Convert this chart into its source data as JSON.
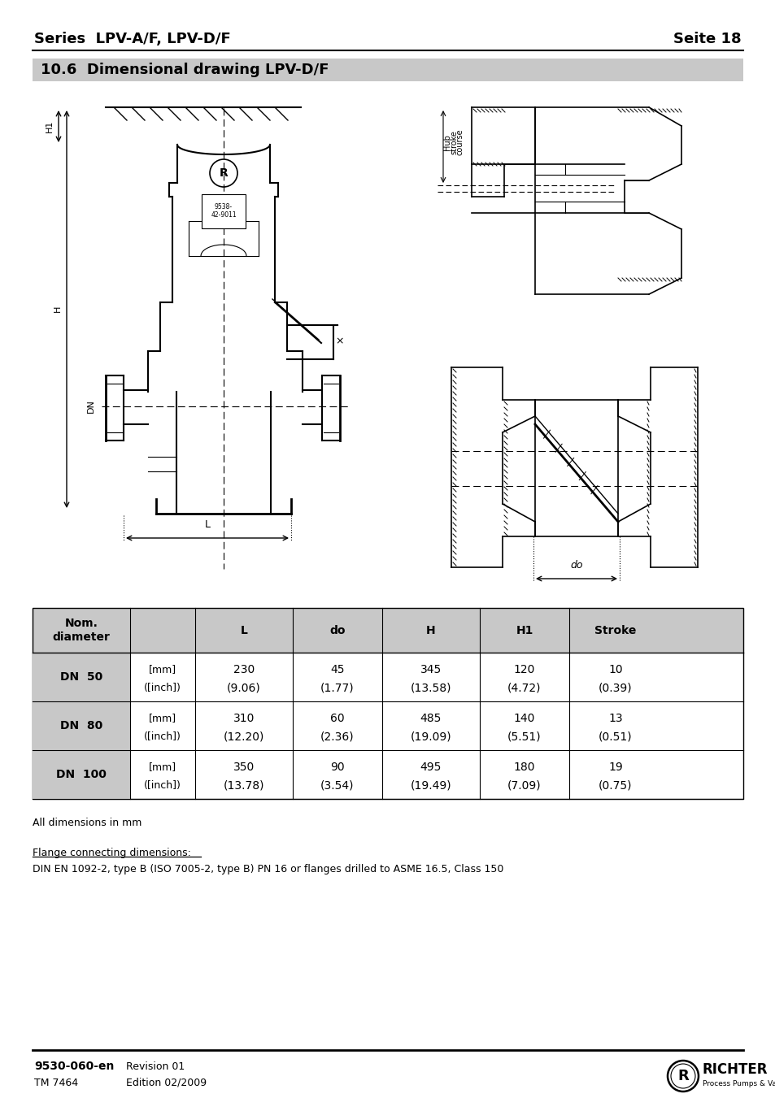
{
  "page_title_left": "Series  LPV-A/F, LPV-D/F",
  "page_title_right": "Seite 18",
  "section_title": "10.6  Dimensional drawing LPV-D/F",
  "section_bg": "#c8c8c8",
  "table_header_bg": "#c8c8c8",
  "rows": [
    {
      "dn": "DN  50",
      "unit_mm": "[mm]",
      "unit_inch": "([inch])",
      "L_mm": "230",
      "L_in": "(9.06)",
      "do_mm": "45",
      "do_in": "(1.77)",
      "H_mm": "345",
      "H_in": "(13.58)",
      "H1_mm": "120",
      "H1_in": "(4.72)",
      "S_mm": "10",
      "S_in": "(0.39)"
    },
    {
      "dn": "DN  80",
      "unit_mm": "[mm]",
      "unit_inch": "([inch])",
      "L_mm": "310",
      "L_in": "(12.20)",
      "do_mm": "60",
      "do_in": "(2.36)",
      "H_mm": "485",
      "H_in": "(19.09)",
      "H1_mm": "140",
      "H1_in": "(5.51)",
      "S_mm": "13",
      "S_in": "(0.51)"
    },
    {
      "dn": "DN  100",
      "unit_mm": "[mm]",
      "unit_inch": "([inch])",
      "L_mm": "350",
      "L_in": "(13.78)",
      "do_mm": "90",
      "do_in": "(3.54)",
      "H_mm": "495",
      "H_in": "(19.49)",
      "H1_mm": "180",
      "H1_in": "(7.09)",
      "S_mm": "19",
      "S_in": "(0.75)"
    }
  ],
  "note1": "All dimensions in mm",
  "note2_underline": "Flange connecting dimensions:",
  "note2_body": "DIN EN 1092-2, type B (ISO 7005-2, type B) PN 16 or flanges drilled to ASME 16.5, Class 150",
  "footer_left_bold": "9530-060-en",
  "footer_left_normal1": "TM 7464",
  "footer_right_bold": "Revision 01",
  "footer_right_normal": "Edition 02/2009",
  "bg_color": "#ffffff",
  "text_color": "#000000",
  "border_color": "#000000"
}
